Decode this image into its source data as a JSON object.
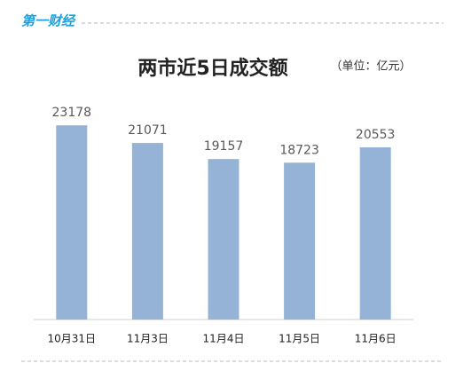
{
  "logo": "第一财经",
  "chart_data": {
    "type": "bar",
    "title": "两市近5日成交额",
    "subtitle": "（单位：亿元）",
    "categories": [
      "10月31日",
      "11月3日",
      "11月4日",
      "11月5日",
      "11月6日"
    ],
    "values": [
      23178,
      21071,
      19157,
      18723,
      20553
    ],
    "color": "#95b3d7",
    "ylim": [
      0,
      25000
    ]
  }
}
